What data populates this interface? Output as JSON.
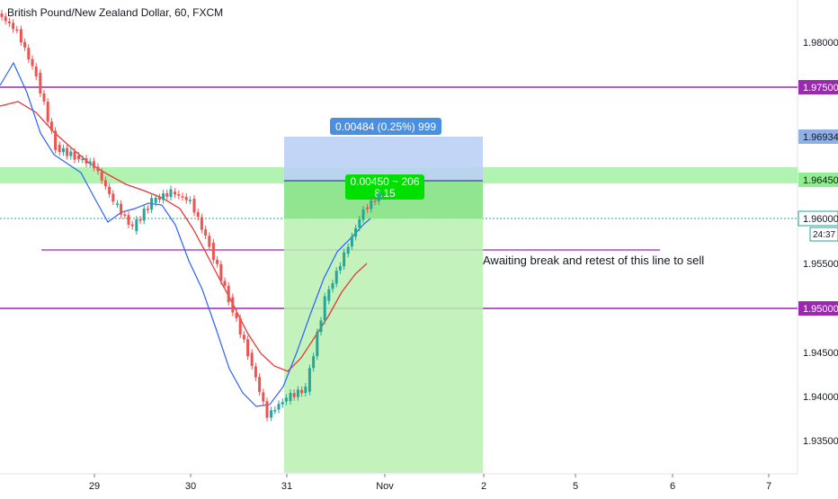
{
  "header": {
    "title": "British Pound/New Zealand Dollar, 60, FXCM"
  },
  "axis": {
    "price_ticks": [
      "1.98000",
      "1.95500",
      "1.94500",
      "1.94000",
      "1.93500"
    ],
    "date_ticks": [
      {
        "label": "29",
        "day": 29
      },
      {
        "label": "30",
        "day": 30
      },
      {
        "label": "31",
        "day": 31
      },
      {
        "label": "Nov",
        "day": 32
      },
      {
        "label": "2",
        "day": 33
      },
      {
        "label": "5",
        "day": 34
      },
      {
        "label": "6",
        "day": 35
      },
      {
        "label": "7",
        "day": 36
      }
    ],
    "price_range": [
      1.9315,
      1.9845
    ]
  },
  "price_badges": [
    {
      "label": "1.97500",
      "value": 1.975,
      "color": "#9c27b0"
    },
    {
      "label": "1.96934",
      "value": 1.96934,
      "color": "#8fb0e0"
    },
    {
      "label": "1.96450",
      "value": 1.9645,
      "color": "#90ee90"
    },
    {
      "label": "1.96000",
      "value": 1.96,
      "color": "#ffffff"
    },
    {
      "label": "24:37",
      "value": 1.9581,
      "color": "#ffffff"
    },
    {
      "label": "1.95000",
      "value": 1.95,
      "color": "#9c27b0"
    }
  ],
  "measure": {
    "label": "0.00484 (0.25%) 999",
    "sub_label_1": "0.00450 ~ 206",
    "sub_label_2": "8.15",
    "top": 1.96934,
    "entry": 1.9645,
    "start_day": 31.0,
    "end_day": 33.0,
    "color": "#4a90e2"
  },
  "annotation": {
    "text": "Awaiting break and retest of this line to sell"
  },
  "colors": {
    "up": "#26a69a",
    "down": "#ef5350",
    "ema_fast": "#2962ff",
    "ema_slow": "#e53935",
    "level_line": "#9c27b0",
    "zone": "#90ee90"
  },
  "chart_data": {
    "type": "candlestick",
    "title": "British Pound/New Zealand Dollar, 60, FXCM",
    "horizontal_levels": [
      1.975,
      1.95,
      1.9565
    ],
    "zone": [
      1.9643,
      1.9658
    ],
    "series": [
      {
        "name": "close",
        "x": [
          28.0,
          28.2,
          28.4,
          28.6,
          28.8,
          29.0,
          29.2,
          29.4,
          29.6,
          29.8,
          30.0,
          30.2,
          30.4,
          30.6,
          30.8,
          31.0,
          31.2,
          31.4,
          31.6,
          31.8
        ],
        "values": [
          1.981,
          1.976,
          1.968,
          1.967,
          1.966,
          1.962,
          1.959,
          1.962,
          1.963,
          1.962,
          1.957,
          1.951,
          1.945,
          1.938,
          1.94,
          1.941,
          1.951,
          1.956,
          1.961,
          1.963
        ]
      }
    ]
  }
}
